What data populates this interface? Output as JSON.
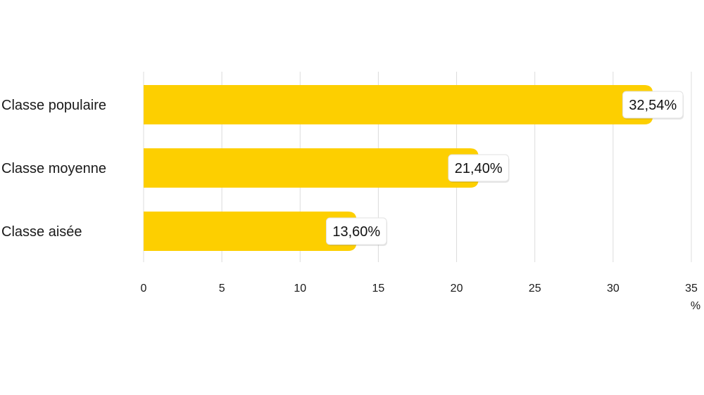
{
  "chart_data": {
    "type": "bar",
    "orientation": "horizontal",
    "categories": [
      "Classe populaire",
      "Classe moyenne",
      "Classe aisée"
    ],
    "values": [
      32.54,
      21.4,
      13.6
    ],
    "value_labels": [
      "32,54%",
      "21,40%",
      "13,60%"
    ],
    "xlim": [
      0,
      35
    ],
    "x_ticks": [
      0,
      5,
      10,
      15,
      20,
      25,
      30,
      35
    ],
    "x_unit": "%",
    "grid": "vertical",
    "bar_color": "#FDCF00",
    "label_box_color": "#FFFFFF"
  }
}
